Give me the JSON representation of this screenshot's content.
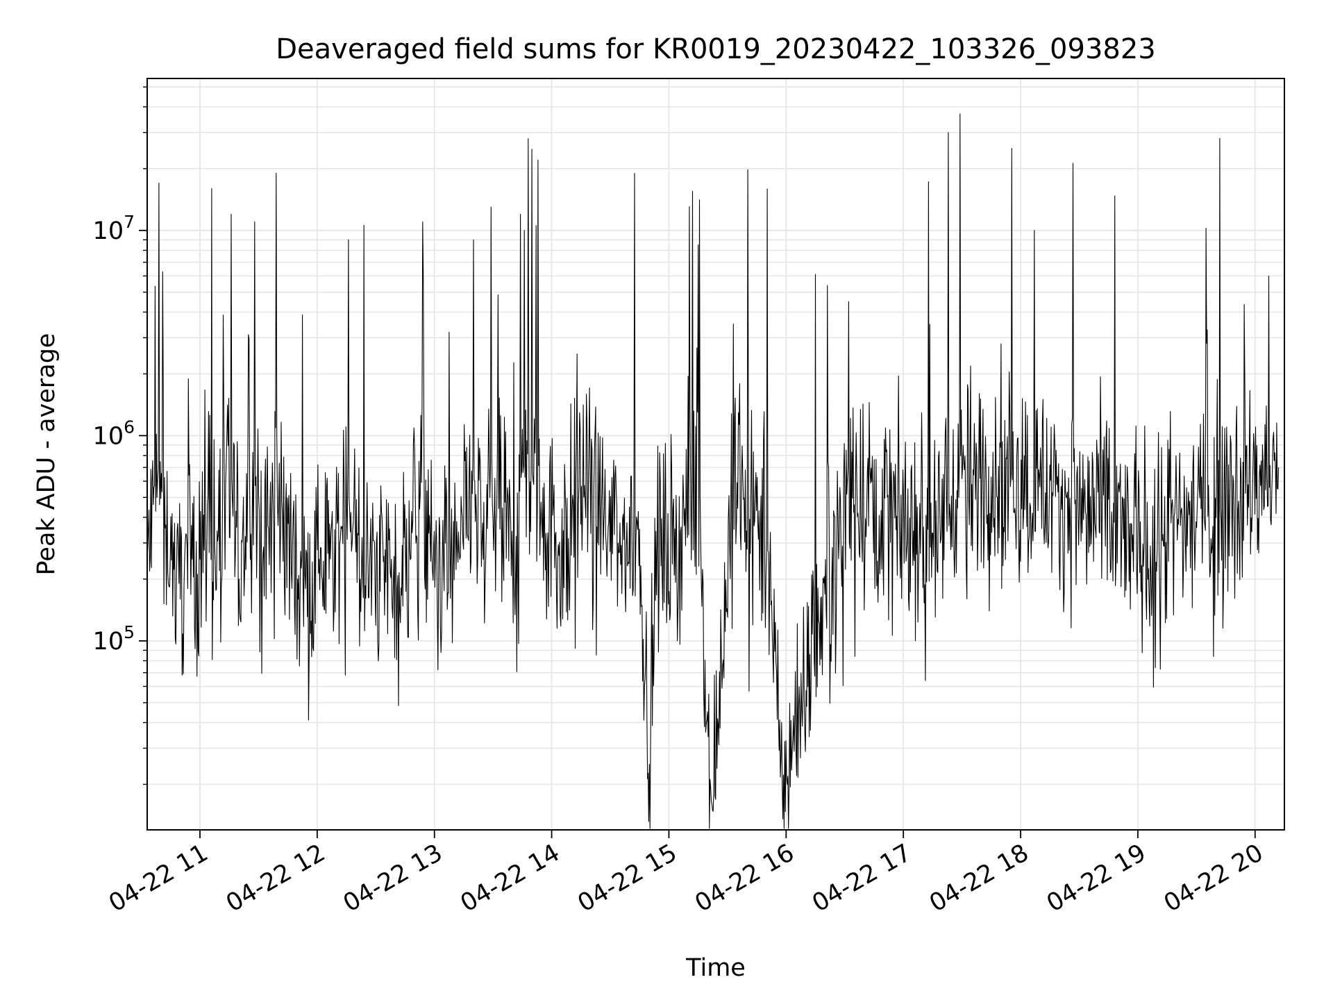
{
  "chart_data": {
    "type": "line",
    "title": "Deaveraged field sums for KR0019_20230422_103326_093823",
    "xlabel": "Time",
    "ylabel": "Peak ADU - average",
    "x_scale": "time",
    "y_scale": "log",
    "xlim": [
      "2023-04-22 10:33",
      "2023-04-22 20:15"
    ],
    "ylim": [
      12000,
      55000000
    ],
    "x_ticks": [
      {
        "value": "2023-04-22 11:00",
        "label": "04-22 11"
      },
      {
        "value": "2023-04-22 12:00",
        "label": "04-22 12"
      },
      {
        "value": "2023-04-22 13:00",
        "label": "04-22 13"
      },
      {
        "value": "2023-04-22 14:00",
        "label": "04-22 14"
      },
      {
        "value": "2023-04-22 15:00",
        "label": "04-22 15"
      },
      {
        "value": "2023-04-22 16:00",
        "label": "04-22 16"
      },
      {
        "value": "2023-04-22 17:00",
        "label": "04-22 17"
      },
      {
        "value": "2023-04-22 18:00",
        "label": "04-22 18"
      },
      {
        "value": "2023-04-22 19:00",
        "label": "04-22 19"
      },
      {
        "value": "2023-04-22 20:00",
        "label": "04-22 20"
      }
    ],
    "y_ticks": [
      {
        "value": 100000,
        "base": "10",
        "exp": "5"
      },
      {
        "value": 1000000,
        "base": "10",
        "exp": "6"
      },
      {
        "value": 10000000,
        "base": "10",
        "exp": "7"
      }
    ],
    "grid": true,
    "line_color": "#000000",
    "series": [
      {
        "x": [
          "2023-04-22 10:33",
          "2023-04-22 10:38",
          "2023-04-22 10:39",
          "2023-04-22 10:48",
          "2023-04-22 10:56",
          "2023-04-22 11:00",
          "2023-04-22 11:06",
          "2023-04-22 11:10",
          "2023-04-22 11:16",
          "2023-04-22 11:20",
          "2023-04-22 11:28",
          "2023-04-22 11:31",
          "2023-04-22 11:39",
          "2023-04-22 11:50",
          "2023-04-22 11:54",
          "2023-04-22 12:01",
          "2023-04-22 12:08",
          "2023-04-22 12:16",
          "2023-04-22 12:22",
          "2023-04-22 12:38",
          "2023-04-22 12:41",
          "2023-04-22 12:54",
          "2023-04-22 12:59",
          "2023-04-22 13:04",
          "2023-04-22 13:13",
          "2023-04-22 13:20",
          "2023-04-22 13:25",
          "2023-04-22 13:29",
          "2023-04-22 13:40",
          "2023-04-22 13:44",
          "2023-04-22 13:46",
          "2023-04-22 13:48",
          "2023-04-22 13:53",
          "2023-04-22 14:05",
          "2023-04-22 14:13",
          "2023-04-22 14:34",
          "2023-04-22 14:45",
          "2023-04-22 14:50",
          "2023-04-22 14:54",
          "2023-04-22 15:04",
          "2023-04-22 15:15",
          "2023-04-22 15:22",
          "2023-04-22 15:33",
          "2023-04-22 15:50",
          "2023-04-22 15:58",
          "2023-04-22 16:32",
          "2023-04-22 17:17",
          "2023-04-22 17:23",
          "2023-04-22 17:29",
          "2023-04-22 17:50",
          "2023-04-22 18:07",
          "2023-04-22 19:00",
          "2023-04-22 19:48",
          "2023-04-22 20:07",
          "2023-04-22 20:12"
        ],
        "values": [
          250000,
          500000,
          17000000,
          200000,
          250000,
          250000,
          16000000,
          220000,
          12000000,
          200000,
          11000000,
          250000,
          19000000,
          200000,
          180000,
          250000,
          250000,
          9000000,
          200000,
          250000,
          180000,
          11000000,
          220000,
          250000,
          250000,
          9000000,
          250000,
          13000000,
          250000,
          12000000,
          10000000,
          28000000,
          22000000,
          250000,
          2500000,
          300000,
          350000,
          25000,
          300000,
          300000,
          8500000,
          16000,
          3500000,
          300000,
          20000,
          4500000,
          300000,
          30000000,
          37000000,
          2800000,
          10000000,
          300000,
          500000,
          6000000,
          700000
        ]
      }
    ]
  }
}
